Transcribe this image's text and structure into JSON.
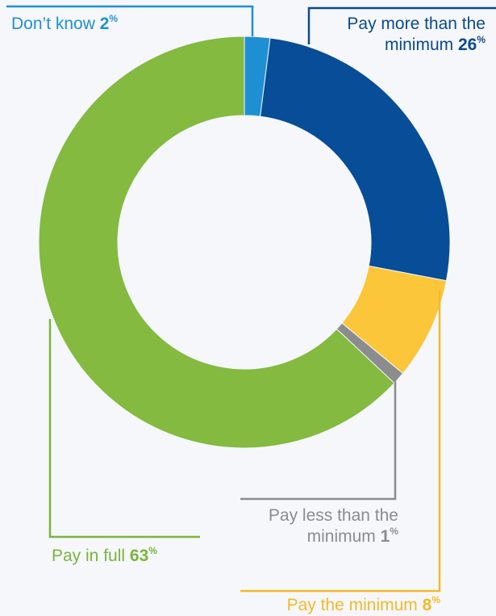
{
  "chart_data": {
    "type": "pie",
    "variant": "donut",
    "unit": "%",
    "slices": [
      {
        "label": "Don’t know",
        "lines": [
          "Don’t know"
        ],
        "value": 2,
        "color": "#1f8fd4",
        "text_color": "#1f8fd4"
      },
      {
        "label": "Pay more than the minimum",
        "lines": [
          "Pay more than the",
          "minimum"
        ],
        "value": 26,
        "color": "#074d97",
        "text_color": "#0b4a8f"
      },
      {
        "label": "Pay the minimum",
        "lines": [
          "Pay the minimum"
        ],
        "value": 8,
        "color": "#fcc63a",
        "text_color": "#f4b92a"
      },
      {
        "label": "Pay less than the minimum",
        "lines": [
          "Pay less than the",
          "minimum"
        ],
        "value": 1,
        "color": "#8a8c8e",
        "text_color": "#8a8c8e"
      },
      {
        "label": "Pay in full",
        "lines": [
          "Pay in full"
        ],
        "value": 63,
        "color": "#83ba3f",
        "text_color": "#7ab53b"
      }
    ]
  }
}
